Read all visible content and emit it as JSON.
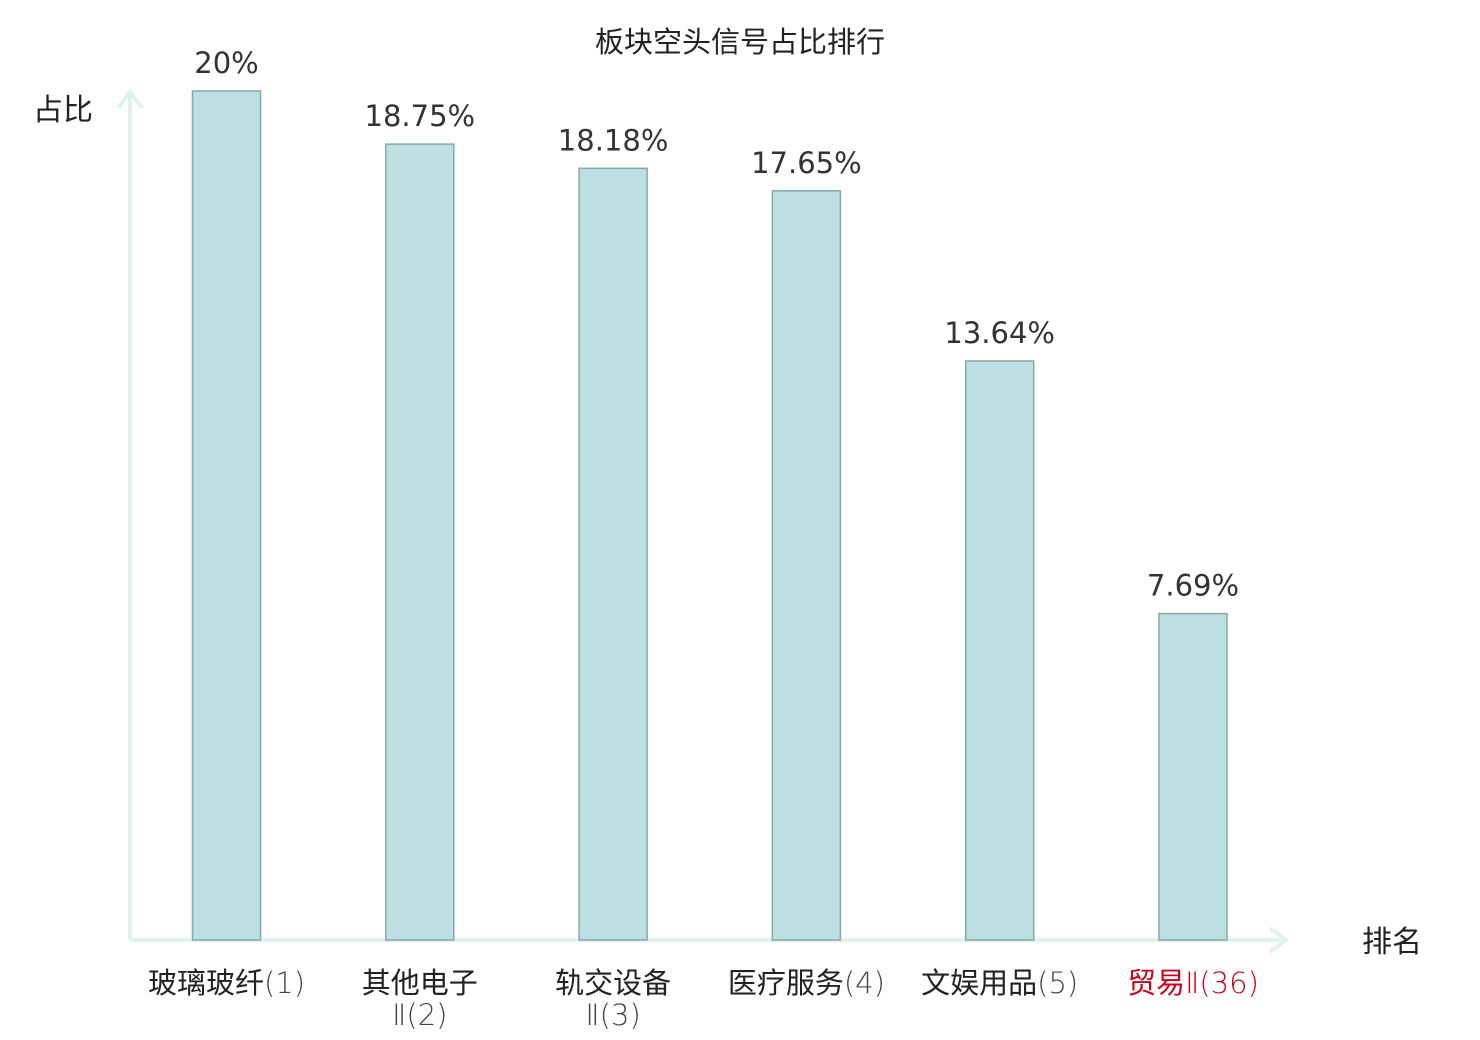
{
  "chart_data": {
    "type": "bar",
    "title": "板块空头信号占比排行",
    "ylabel": "占比",
    "xlabel": "排名",
    "ylim": [
      0,
      20
    ],
    "grid": false,
    "legend": "none",
    "categories": [
      {
        "name_lines": [
          "玻璃玻纤"
        ],
        "rank_line": "(1)",
        "rank_inline": true,
        "highlight": false
      },
      {
        "name_lines": [
          "其他电子"
        ],
        "rank_line": "Ⅱ(2)",
        "rank_inline": false,
        "highlight": false
      },
      {
        "name_lines": [
          "轨交设备"
        ],
        "rank_line": "Ⅱ(3)",
        "rank_inline": false,
        "highlight": false
      },
      {
        "name_lines": [
          "医疗服务"
        ],
        "rank_line": "(4)",
        "rank_inline": true,
        "highlight": false
      },
      {
        "name_lines": [
          "文娱用品"
        ],
        "rank_line": "(5)",
        "rank_inline": true,
        "highlight": false
      },
      {
        "name_lines": [
          "贸易"
        ],
        "rank_line": "Ⅱ(36)",
        "rank_inline": true,
        "highlight": true
      }
    ],
    "values": [
      20,
      18.75,
      18.18,
      17.65,
      13.64,
      7.69
    ],
    "value_labels": [
      "20%",
      "18.75%",
      "18.18%",
      "17.65%",
      "13.64%",
      "7.69%"
    ],
    "colors": {
      "bar_fill": "#bce0e2",
      "bar_stroke": "#86a8aa",
      "axis": "#dff2ee",
      "highlight_text": "#d0021b",
      "text": "#222222"
    }
  }
}
